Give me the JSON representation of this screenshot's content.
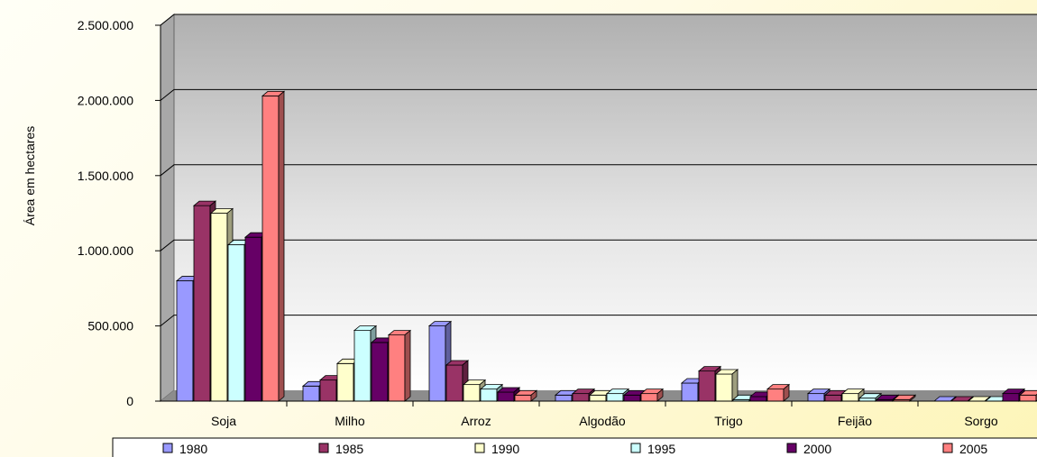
{
  "chart_data": {
    "type": "bar",
    "title": "",
    "xlabel": "",
    "ylabel": "Área em hectares",
    "ylim": [
      0,
      2500000
    ],
    "y_ticks": [
      0,
      500000,
      1000000,
      1500000,
      2000000,
      2500000
    ],
    "y_tick_labels": [
      "0",
      "500.000",
      "1.000.000",
      "1.500.000",
      "2.000.000",
      "2.500.000"
    ],
    "grid": true,
    "legend_position": "bottom",
    "categories": [
      "Soja",
      "Milho",
      "Arroz",
      "Algodão",
      "Trigo",
      "Feijão",
      "Sorgo"
    ],
    "series": [
      {
        "name": "1980",
        "color": "#9999ff",
        "values": [
          800000,
          100000,
          500000,
          40000,
          120000,
          50000,
          0
        ]
      },
      {
        "name": "1985",
        "color": "#993366",
        "values": [
          1300000,
          140000,
          240000,
          50000,
          200000,
          40000,
          0
        ]
      },
      {
        "name": "1990",
        "color": "#ffffcc",
        "values": [
          1250000,
          250000,
          110000,
          40000,
          180000,
          50000,
          0
        ]
      },
      {
        "name": "1995",
        "color": "#ccffff",
        "values": [
          1040000,
          470000,
          80000,
          50000,
          10000,
          20000,
          0
        ]
      },
      {
        "name": "2000",
        "color": "#660066",
        "values": [
          1090000,
          390000,
          60000,
          40000,
          30000,
          10000,
          50000
        ]
      },
      {
        "name": "2005",
        "color": "#ff8080",
        "values": [
          2030000,
          440000,
          40000,
          50000,
          80000,
          10000,
          40000
        ]
      }
    ]
  }
}
